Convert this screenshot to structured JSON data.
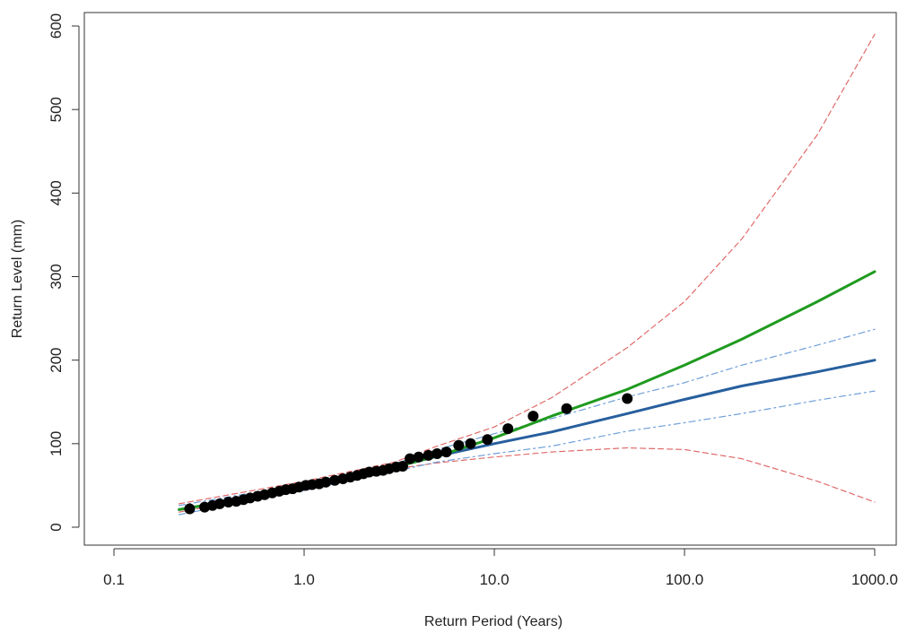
{
  "chart_data": {
    "type": "line",
    "title": "",
    "xlabel": "Return Period (Years)",
    "ylabel": "Return Level (mm)",
    "x_scale": "log",
    "xlim": [
      0.1,
      1000
    ],
    "ylim": [
      -15,
      600
    ],
    "x_ticks": [
      0.1,
      1,
      10,
      100,
      1000
    ],
    "x_tick_labels": [
      "0.1",
      "1.0",
      "10.0",
      "100.0",
      "1000.0"
    ],
    "y_ticks": [
      0,
      100,
      200,
      300,
      400,
      500,
      600
    ],
    "y_tick_labels": [
      "0",
      "100",
      "200",
      "300",
      "400",
      "500",
      "600"
    ],
    "grid": false,
    "legend": "none",
    "colors": {
      "fit_green": "#1f9a1f",
      "fit_blue": "#275f9e",
      "ci_blue": "#6f9fd8",
      "ci_red": "#e06a6a",
      "points": "#000000"
    },
    "series": [
      {
        "style": "green-solid",
        "x": [
          0.22,
          0.5,
          1,
          2,
          3,
          5,
          10,
          20,
          50,
          100,
          200,
          500,
          1000
        ],
        "y": [
          21,
          35,
          48,
          63,
          72,
          85,
          107,
          133,
          165,
          194,
          225,
          270,
          306
        ]
      },
      {
        "style": "blue-solid",
        "x": [
          0.22,
          0.5,
          1,
          2,
          3,
          5,
          10,
          20,
          50,
          100,
          200,
          500,
          1000
        ],
        "y": [
          21,
          35,
          48,
          63,
          72,
          85,
          100,
          114,
          136,
          153,
          169,
          186,
          200
        ]
      },
      {
        "style": "blue-dashed-upper",
        "x": [
          0.22,
          1,
          3,
          5,
          10,
          20,
          50,
          100,
          200,
          500,
          1000
        ],
        "y": [
          26,
          52,
          76,
          93,
          112,
          130,
          156,
          173,
          194,
          218,
          237
        ]
      },
      {
        "style": "blue-dashed-lower",
        "x": [
          0.22,
          1,
          3,
          5,
          10,
          20,
          50,
          100,
          200,
          500,
          1000
        ],
        "y": [
          15,
          44,
          67,
          78,
          88,
          97,
          115,
          125,
          136,
          152,
          163
        ]
      },
      {
        "style": "red-dashed-upper",
        "x": [
          0.22,
          1,
          3,
          5,
          10,
          20,
          50,
          100,
          200,
          500,
          1000
        ],
        "y": [
          28,
          55,
          78,
          97,
          120,
          155,
          215,
          270,
          345,
          470,
          590
        ]
      },
      {
        "style": "red-dashed-lower",
        "x": [
          0.22,
          1,
          3,
          5,
          10,
          20,
          50,
          100,
          200,
          500,
          1000
        ],
        "y": [
          18,
          46,
          70,
          77,
          84,
          90,
          95,
          93,
          82,
          55,
          30
        ]
      }
    ],
    "points": {
      "x": [
        0.25,
        0.3,
        0.33,
        0.36,
        0.4,
        0.44,
        0.48,
        0.52,
        0.57,
        0.62,
        0.68,
        0.74,
        0.8,
        0.87,
        0.94,
        1.02,
        1.1,
        1.2,
        1.3,
        1.45,
        1.6,
        1.75,
        1.9,
        2.05,
        2.2,
        2.4,
        2.6,
        2.8,
        3.05,
        3.3,
        3.6,
        4.0,
        4.5,
        5.0,
        5.6,
        6.5,
        7.5,
        9.2,
        11.8,
        16,
        24,
        50
      ],
      "y": [
        22,
        24,
        26,
        28,
        30,
        31,
        33,
        35,
        37,
        39,
        41,
        43,
        45,
        46,
        48,
        50,
        51,
        52,
        54,
        56,
        58,
        60,
        62,
        64,
        66,
        67,
        68,
        70,
        72,
        73,
        82,
        84,
        86,
        88,
        90,
        98,
        100,
        105,
        118,
        133,
        142,
        154
      ]
    }
  }
}
